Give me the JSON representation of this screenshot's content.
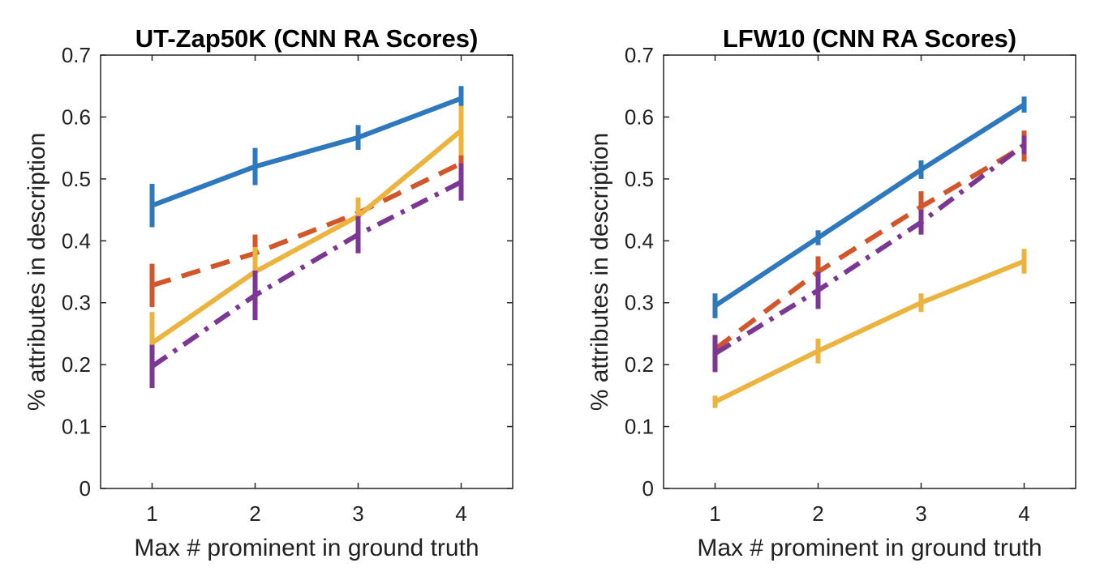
{
  "chart_data": [
    {
      "type": "line",
      "title": "UT-Zap50K (CNN RA Scores)",
      "xlabel": "Max # prominent in ground truth",
      "ylabel": "% attributes in description",
      "x": [
        1,
        2,
        3,
        4
      ],
      "xlim": [
        0.5,
        4.5
      ],
      "ylim": [
        0,
        0.7
      ],
      "xticks": [
        "1",
        "2",
        "3",
        "4"
      ],
      "yticks": [
        "0",
        "0.1",
        "0.2",
        "0.3",
        "0.4",
        "0.5",
        "0.6",
        "0.7"
      ],
      "series": [
        {
          "name": "series-blue",
          "color": "#2e78bd",
          "style": "solid",
          "values": [
            0.457,
            0.52,
            0.567,
            0.63
          ],
          "err": [
            0.035,
            0.03,
            0.02,
            0.02
          ]
        },
        {
          "name": "series-red",
          "color": "#d2562a",
          "style": "dashed",
          "values": [
            0.328,
            0.38,
            0.445,
            0.525
          ],
          "err": [
            0.035,
            0.03,
            0.02,
            0.02
          ]
        },
        {
          "name": "series-yellow",
          "color": "#ecb33e",
          "style": "solid",
          "values": [
            0.235,
            0.35,
            0.44,
            0.578
          ],
          "err": [
            0.05,
            0.04,
            0.03,
            0.04
          ]
        },
        {
          "name": "series-purple",
          "color": "#7c3694",
          "style": "dashdot",
          "values": [
            0.197,
            0.312,
            0.41,
            0.495
          ],
          "err": [
            0.035,
            0.04,
            0.03,
            0.03
          ]
        }
      ]
    },
    {
      "type": "line",
      "title": "LFW10 (CNN RA Scores)",
      "xlabel": "Max # prominent in ground truth",
      "ylabel": "% attributes in description",
      "x": [
        1,
        2,
        3,
        4
      ],
      "xlim": [
        0.5,
        4.5
      ],
      "ylim": [
        0,
        0.7
      ],
      "xticks": [
        "1",
        "2",
        "3",
        "4"
      ],
      "yticks": [
        "0",
        "0.1",
        "0.2",
        "0.3",
        "0.4",
        "0.5",
        "0.6",
        "0.7"
      ],
      "series": [
        {
          "name": "series-blue",
          "color": "#2e78bd",
          "style": "solid",
          "values": [
            0.295,
            0.405,
            0.515,
            0.62
          ],
          "err": [
            0.02,
            0.012,
            0.015,
            0.013
          ]
        },
        {
          "name": "series-red",
          "color": "#d2562a",
          "style": "dashed",
          "values": [
            0.225,
            0.35,
            0.455,
            0.553
          ],
          "err": [
            0.02,
            0.025,
            0.025,
            0.025
          ]
        },
        {
          "name": "series-yellow",
          "color": "#ecb33e",
          "style": "solid",
          "values": [
            0.14,
            0.222,
            0.3,
            0.367
          ],
          "err": [
            0.01,
            0.02,
            0.015,
            0.02
          ]
        },
        {
          "name": "series-purple",
          "color": "#7c3694",
          "style": "dashdot",
          "values": [
            0.218,
            0.32,
            0.43,
            0.555
          ],
          "err": [
            0.03,
            0.03,
            0.02,
            0.015
          ]
        }
      ]
    }
  ]
}
